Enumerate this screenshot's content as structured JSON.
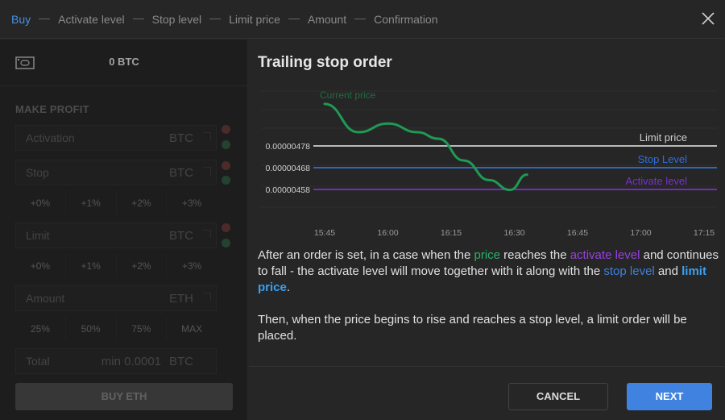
{
  "steps": [
    "Buy",
    "Activate level",
    "Stop level",
    "Limit price",
    "Amount",
    "Confirmation"
  ],
  "active_step": 0,
  "wallet": {
    "balance": "0 BTC"
  },
  "form": {
    "section_title": "MAKE PROFIT",
    "activation": {
      "label": "Activation",
      "unit": "BTC"
    },
    "stop": {
      "label": "Stop",
      "unit": "BTC"
    },
    "stop_percents": [
      "+0%",
      "+1%",
      "+2%",
      "+3%"
    ],
    "limit": {
      "label": "Limit",
      "unit": "BTC"
    },
    "limit_percents": [
      "+0%",
      "+1%",
      "+2%",
      "+3%"
    ],
    "amount": {
      "label": "Amount",
      "unit": "ETH"
    },
    "amount_percents": [
      "25%",
      "50%",
      "75%",
      "MAX"
    ],
    "total": {
      "label": "Total",
      "value": "min 0.0001",
      "unit": "BTC"
    },
    "buy_label": "BUY ETH"
  },
  "panel": {
    "title": "Trailing stop order",
    "paragraph1": [
      {
        "text": "After an order is set, in a case when the ",
        "style": ""
      },
      {
        "text": "price",
        "style": "hl-green"
      },
      {
        "text": " reaches the ",
        "style": ""
      },
      {
        "text": "activate level",
        "style": "hl-purple"
      },
      {
        "text": " and continues to fall - the activate level will move together with it along with the ",
        "style": ""
      },
      {
        "text": "stop level",
        "style": "hl-blue"
      },
      {
        "text": " and ",
        "style": ""
      },
      {
        "text": "limit price",
        "style": "hl-lightblue"
      },
      {
        "text": ".",
        "style": ""
      }
    ],
    "paragraph2": "Then, when the price begins to rise and reaches a stop level, a limit order will be placed.",
    "cancel_label": "CANCEL",
    "next_label": "NEXT"
  },
  "colors": {
    "current_price": "#1f9a55",
    "limit_price": "#cfcfcf",
    "stop_level": "#2f6fd8",
    "activate_level": "#7a2fd0",
    "active_step": "#4a8fe0",
    "next_button": "#3f82e0"
  },
  "chart_data": {
    "type": "line",
    "x_ticks": [
      "15:45",
      "16:00",
      "16:15",
      "16:30",
      "16:45",
      "17:00",
      "17:15"
    ],
    "y_ticks": [
      "0.00000478",
      "0.00000468",
      "0.00000458"
    ],
    "series": [
      {
        "name": "Current price",
        "x": [
          "15:45",
          "15:53",
          "16:00",
          "16:07",
          "16:12",
          "16:18",
          "16:24",
          "16:29",
          "16:33"
        ],
        "y": [
          4.973e-06,
          4.843e-06,
          4.883e-06,
          4.843e-06,
          4.813e-06,
          4.713e-06,
          4.623e-06,
          4.578e-06,
          4.648e-06
        ]
      }
    ],
    "levels": [
      {
        "name": "Limit price",
        "y": 4.78e-06
      },
      {
        "name": "Stop Level",
        "y": 4.68e-06
      },
      {
        "name": "Activate level",
        "y": 4.58e-06
      }
    ],
    "grid": true
  }
}
